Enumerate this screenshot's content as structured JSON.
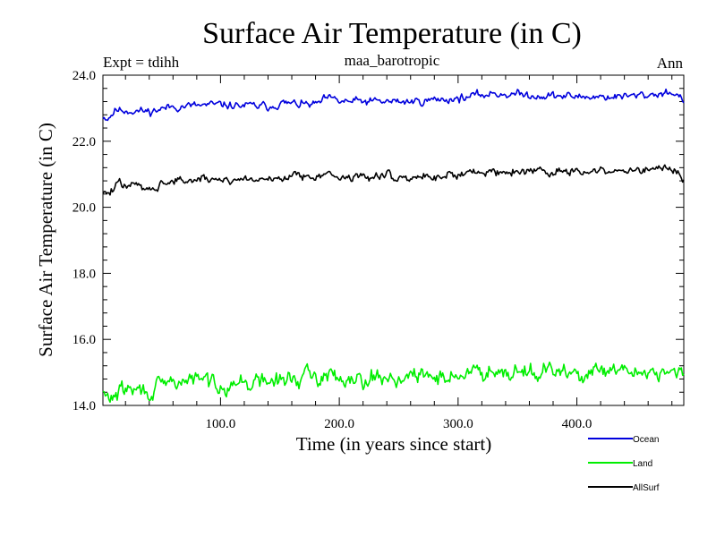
{
  "chart_data": {
    "type": "line",
    "title": "Surface Air Temperature (in C)",
    "subtitle_left": "Expt = tdihh",
    "subtitle_center": "maa_barotropic",
    "subtitle_right": "Ann",
    "xlabel": "Time (in years since start)",
    "ylabel": "Surface Air Temperature (in C)",
    "xlim": [
      1,
      490
    ],
    "ylim": [
      14.0,
      24.0
    ],
    "x_ticks": [
      100,
      200,
      300,
      400
    ],
    "x_tick_labels": [
      "100.0",
      "200.0",
      "300.0",
      "400.0"
    ],
    "y_ticks": [
      14,
      16,
      18,
      20,
      22,
      24
    ],
    "y_tick_labels": [
      "14.0",
      "16.0",
      "18.0",
      "20.0",
      "22.0",
      "24.0"
    ],
    "legend_position": "bottom-right outside",
    "n_years": 490,
    "series": [
      {
        "name": "Ocean",
        "color": "#0000dd",
        "start": 22.8,
        "end": 23.35,
        "noise_amplitude": 0.12,
        "seed": 11,
        "anchors": [
          [
            1,
            22.75
          ],
          [
            5,
            22.7
          ],
          [
            12,
            22.95
          ],
          [
            40,
            22.9
          ],
          [
            60,
            23.05
          ],
          [
            100,
            23.1
          ],
          [
            140,
            23.05
          ],
          [
            150,
            23.15
          ],
          [
            180,
            23.1
          ],
          [
            190,
            23.3
          ],
          [
            200,
            23.2
          ],
          [
            240,
            23.2
          ],
          [
            260,
            23.2
          ],
          [
            300,
            23.3
          ],
          [
            330,
            23.45
          ],
          [
            360,
            23.4
          ],
          [
            400,
            23.35
          ],
          [
            440,
            23.35
          ],
          [
            460,
            23.4
          ],
          [
            480,
            23.5
          ],
          [
            490,
            23.25
          ]
        ]
      },
      {
        "name": "Land",
        "color": "#00ee00",
        "start": 14.4,
        "end": 15.0,
        "noise_amplitude": 0.25,
        "seed": 29,
        "anchors": [
          [
            1,
            14.35
          ],
          [
            5,
            14.2
          ],
          [
            20,
            14.5
          ],
          [
            40,
            14.4
          ],
          [
            60,
            14.7
          ],
          [
            80,
            14.8
          ],
          [
            100,
            14.65
          ],
          [
            130,
            14.7
          ],
          [
            150,
            14.75
          ],
          [
            170,
            14.85
          ],
          [
            190,
            14.9
          ],
          [
            220,
            14.85
          ],
          [
            260,
            14.85
          ],
          [
            300,
            14.9
          ],
          [
            330,
            15.1
          ],
          [
            360,
            15.05
          ],
          [
            400,
            14.95
          ],
          [
            440,
            15.0
          ],
          [
            470,
            15.05
          ],
          [
            490,
            14.9
          ]
        ]
      },
      {
        "name": "AllSurf",
        "color": "#000000",
        "start": 20.5,
        "end": 21.0,
        "noise_amplitude": 0.13,
        "seed": 47,
        "anchors": [
          [
            1,
            20.5
          ],
          [
            5,
            20.4
          ],
          [
            15,
            20.7
          ],
          [
            40,
            20.6
          ],
          [
            60,
            20.8
          ],
          [
            100,
            20.85
          ],
          [
            140,
            20.85
          ],
          [
            160,
            20.95
          ],
          [
            185,
            21.0
          ],
          [
            200,
            20.9
          ],
          [
            230,
            20.95
          ],
          [
            260,
            20.9
          ],
          [
            300,
            21.0
          ],
          [
            330,
            21.1
          ],
          [
            360,
            21.1
          ],
          [
            400,
            21.05
          ],
          [
            440,
            21.1
          ],
          [
            470,
            21.15
          ],
          [
            490,
            20.95
          ]
        ]
      }
    ]
  }
}
